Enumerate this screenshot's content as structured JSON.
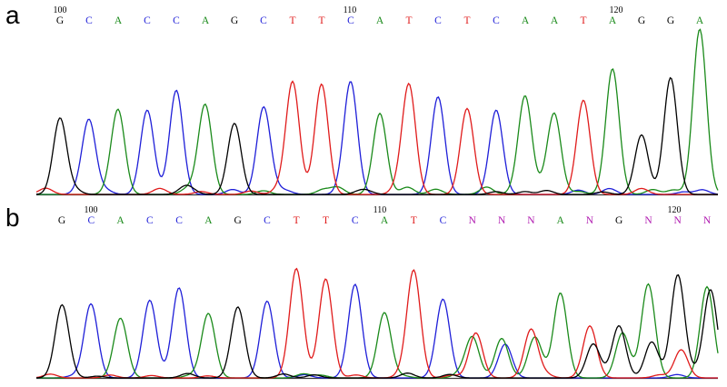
{
  "colors": {
    "A": "#1a8a1a",
    "C": "#1f1fd8",
    "G": "#000000",
    "T": "#e01b1b",
    "N": "#b01ab0"
  },
  "chart_data": [
    {
      "type": "line",
      "panel": "a",
      "positions": [
        100,
        110,
        120
      ],
      "bases": [
        "G",
        "C",
        "A",
        "C",
        "C",
        "A",
        "G",
        "C",
        "T",
        "T",
        "C",
        "A",
        "T",
        "C",
        "T",
        "C",
        "A",
        "A",
        "T",
        "A",
        "G",
        "G",
        "A"
      ],
      "peaks": [
        {
          "base": "G",
          "height": 0.46
        },
        {
          "base": "C",
          "height": 0.44
        },
        {
          "base": "A",
          "height": 0.5
        },
        {
          "base": "C",
          "height": 0.51
        },
        {
          "base": "C",
          "height": 0.63
        },
        {
          "base": "A",
          "height": 0.52
        },
        {
          "base": "G",
          "height": 0.43
        },
        {
          "base": "C",
          "height": 0.52
        },
        {
          "base": "T",
          "height": 0.68
        },
        {
          "base": "T",
          "height": 0.64
        },
        {
          "base": "C",
          "height": 0.66
        },
        {
          "base": "A",
          "height": 0.49
        },
        {
          "base": "T",
          "height": 0.66
        },
        {
          "base": "C",
          "height": 0.59
        },
        {
          "base": "T",
          "height": 0.52
        },
        {
          "base": "C",
          "height": 0.51
        },
        {
          "base": "A",
          "height": 0.58
        },
        {
          "base": "A",
          "height": 0.48
        },
        {
          "base": "T",
          "height": 0.57
        },
        {
          "base": "A",
          "height": 0.76
        },
        {
          "base": "G",
          "height": 0.36
        },
        {
          "base": "G",
          "height": 0.69
        },
        {
          "base": "A",
          "height": 1.0
        }
      ]
    },
    {
      "type": "line",
      "panel": "b",
      "positions": [
        100,
        110,
        120
      ],
      "bases": [
        "G",
        "C",
        "A",
        "C",
        "C",
        "A",
        "G",
        "C",
        "T",
        "T",
        "C",
        "A",
        "T",
        "C",
        "N",
        "N",
        "N",
        "A",
        "N",
        "G",
        "N",
        "N",
        "N"
      ],
      "peaks": [
        {
          "base": "G",
          "height": 0.62
        },
        {
          "base": "C",
          "height": 0.62
        },
        {
          "base": "A",
          "height": 0.53
        },
        {
          "base": "C",
          "height": 0.69
        },
        {
          "base": "C",
          "height": 0.79
        },
        {
          "base": "A",
          "height": 0.55
        },
        {
          "base": "G",
          "height": 0.62
        },
        {
          "base": "C",
          "height": 0.66
        },
        {
          "base": "T",
          "height": 0.96
        },
        {
          "base": "T",
          "height": 0.86
        },
        {
          "base": "C",
          "height": 0.83
        },
        {
          "base": "A",
          "height": 0.58
        },
        {
          "base": "T",
          "height": 0.95
        },
        {
          "base": "C",
          "height": 0.68
        },
        {
          "base": "A",
          "height": 0.36,
          "secondary": {
            "base": "T",
            "height": 0.4
          }
        },
        {
          "base": "A",
          "height": 0.35,
          "secondary": {
            "base": "C",
            "height": 0.3
          }
        },
        {
          "base": "T",
          "height": 0.43,
          "secondary": {
            "base": "A",
            "height": 0.33
          }
        },
        {
          "base": "A",
          "height": 0.72
        },
        {
          "base": "T",
          "height": 0.45,
          "secondary": {
            "base": "G",
            "height": 0.3
          }
        },
        {
          "base": "G",
          "height": 0.46,
          "secondary": {
            "base": "A",
            "height": 0.4
          }
        },
        {
          "base": "A",
          "height": 0.82,
          "secondary": {
            "base": "G",
            "height": 0.3
          }
        },
        {
          "base": "G",
          "height": 0.9,
          "secondary": {
            "base": "T",
            "height": 0.25
          }
        },
        {
          "base": "A",
          "height": 0.81,
          "secondary": {
            "base": "G",
            "height": 0.78
          }
        }
      ]
    }
  ],
  "panels": [
    {
      "label": "a"
    },
    {
      "label": "b"
    }
  ]
}
